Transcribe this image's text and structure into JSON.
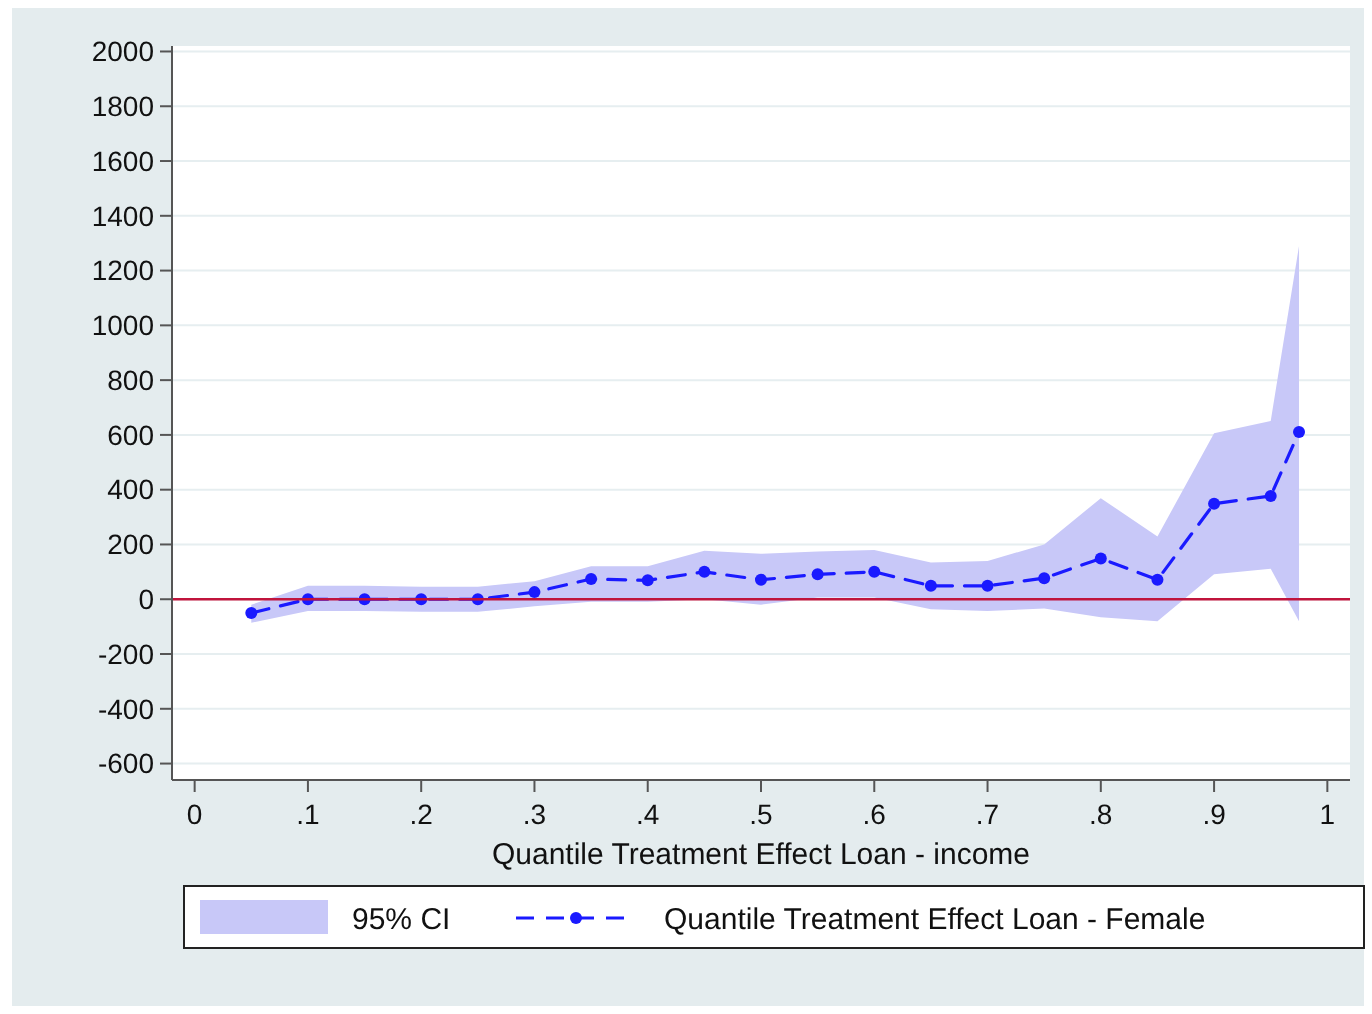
{
  "chart_data": {
    "type": "line",
    "xlabel": "Quantile Treatment Effect Loan - income",
    "x": [
      0.05,
      0.1,
      0.15,
      0.2,
      0.25,
      0.3,
      0.35,
      0.4,
      0.45,
      0.5,
      0.55,
      0.6,
      0.65,
      0.7,
      0.75,
      0.8,
      0.85,
      0.9,
      0.95,
      0.975
    ],
    "series": [
      {
        "name": "Quantile Treatment Effect Loan - Female",
        "color": "#1a1aff",
        "values": [
          -50,
          0,
          0,
          0,
          0,
          26,
          74,
          69,
          100,
          71,
          91,
          100,
          49,
          49,
          77,
          149,
          71,
          349,
          377,
          611
        ],
        "lower": [
          -86,
          -43,
          -43,
          -46,
          -46,
          -26,
          -9,
          -9,
          0,
          -20,
          6,
          6,
          -37,
          -43,
          -34,
          -66,
          -80,
          91,
          111,
          -80
        ],
        "upper": [
          -20,
          49,
          49,
          46,
          46,
          66,
          120,
          120,
          177,
          166,
          174,
          180,
          134,
          140,
          200,
          369,
          229,
          606,
          651,
          1290
        ]
      }
    ],
    "annotations": [
      "95% CI"
    ],
    "marker": "circle",
    "line_style": "dashed",
    "xlim": [
      -0.02,
      1.02
    ],
    "ylim": [
      -660,
      2020
    ],
    "xticks": [
      0,
      {
        "value": 0.1,
        "label": ".1"
      },
      {
        "value": 0.2,
        "label": ".2"
      },
      {
        "value": 0.3,
        "label": ".3"
      },
      {
        "value": 0.4,
        "label": ".4"
      },
      {
        "value": 0.5,
        "label": ".5"
      },
      {
        "value": 0.6,
        "label": ".6"
      },
      {
        "value": 0.7,
        "label": ".7"
      },
      {
        "value": 0.8,
        "label": ".8"
      },
      {
        "value": 0.9,
        "label": ".9"
      },
      1
    ],
    "yticks": [
      -600,
      -400,
      -200,
      0,
      200,
      400,
      600,
      800,
      1000,
      1200,
      1400,
      1600,
      1800,
      2000
    ],
    "grid": "y",
    "legend": "bottom",
    "ref_lines": [
      {
        "axis": "y",
        "value": 0,
        "color": "#c0143c"
      }
    ]
  }
}
